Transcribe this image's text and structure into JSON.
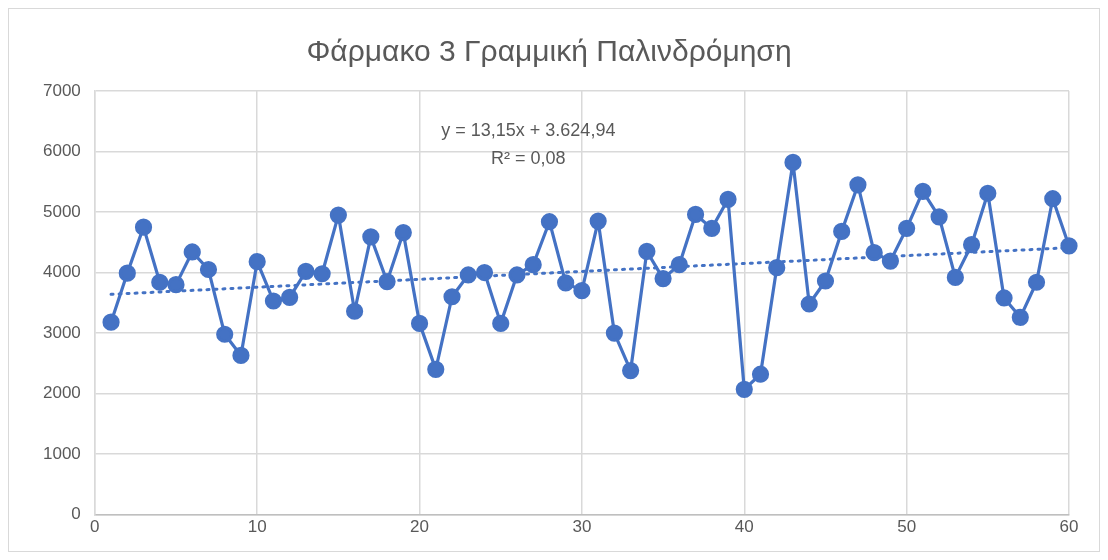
{
  "chart_data": {
    "type": "line",
    "title": "Φάρμακο 3 Γραμμική Παλινδρόμηση",
    "x": [
      1,
      2,
      3,
      4,
      5,
      6,
      7,
      8,
      9,
      10,
      11,
      12,
      13,
      14,
      15,
      16,
      17,
      18,
      19,
      20,
      21,
      22,
      23,
      24,
      25,
      26,
      27,
      28,
      29,
      30,
      31,
      32,
      33,
      34,
      35,
      36,
      37,
      38,
      39,
      40,
      41,
      42,
      43,
      44,
      45,
      46,
      47,
      48,
      49,
      50,
      51,
      52,
      53,
      54,
      55,
      56,
      57,
      58,
      59,
      60
    ],
    "series": [
      {
        "type": "line",
        "color": "#4472c4",
        "marker": "circle",
        "line_style": "solid",
        "values": [
          3180,
          3990,
          4750,
          3840,
          3800,
          4340,
          4050,
          2980,
          2630,
          4180,
          3530,
          3590,
          4020,
          3980,
          4950,
          3360,
          4590,
          3850,
          4660,
          3160,
          2400,
          3600,
          3960,
          4000,
          3160,
          3960,
          4130,
          4840,
          3830,
          3700,
          4850,
          3000,
          2380,
          4350,
          3900,
          4130,
          4960,
          4730,
          5210,
          2070,
          2320,
          4080,
          5820,
          3480,
          3860,
          4680,
          5450,
          4330,
          4190,
          4730,
          5340,
          4920,
          3920,
          4460,
          5310,
          3580,
          3260,
          3840,
          5220,
          4440
        ]
      },
      {
        "type": "line",
        "color": "#4472c4",
        "marker": "none",
        "line_style": "dotted",
        "x": [
          1,
          60
        ],
        "values": [
          3640,
          4410
        ]
      }
    ],
    "annotations": [
      "y = 13,15x + 3.624,94",
      "R² = 0,08"
    ],
    "xlim": [
      0,
      60
    ],
    "xticks": [
      0,
      10,
      20,
      30,
      40,
      50,
      60
    ],
    "ylim": [
      0,
      7000
    ],
    "yticks": [
      0,
      1000,
      2000,
      3000,
      4000,
      5000,
      6000,
      7000
    ],
    "grid": true,
    "legend": false
  }
}
